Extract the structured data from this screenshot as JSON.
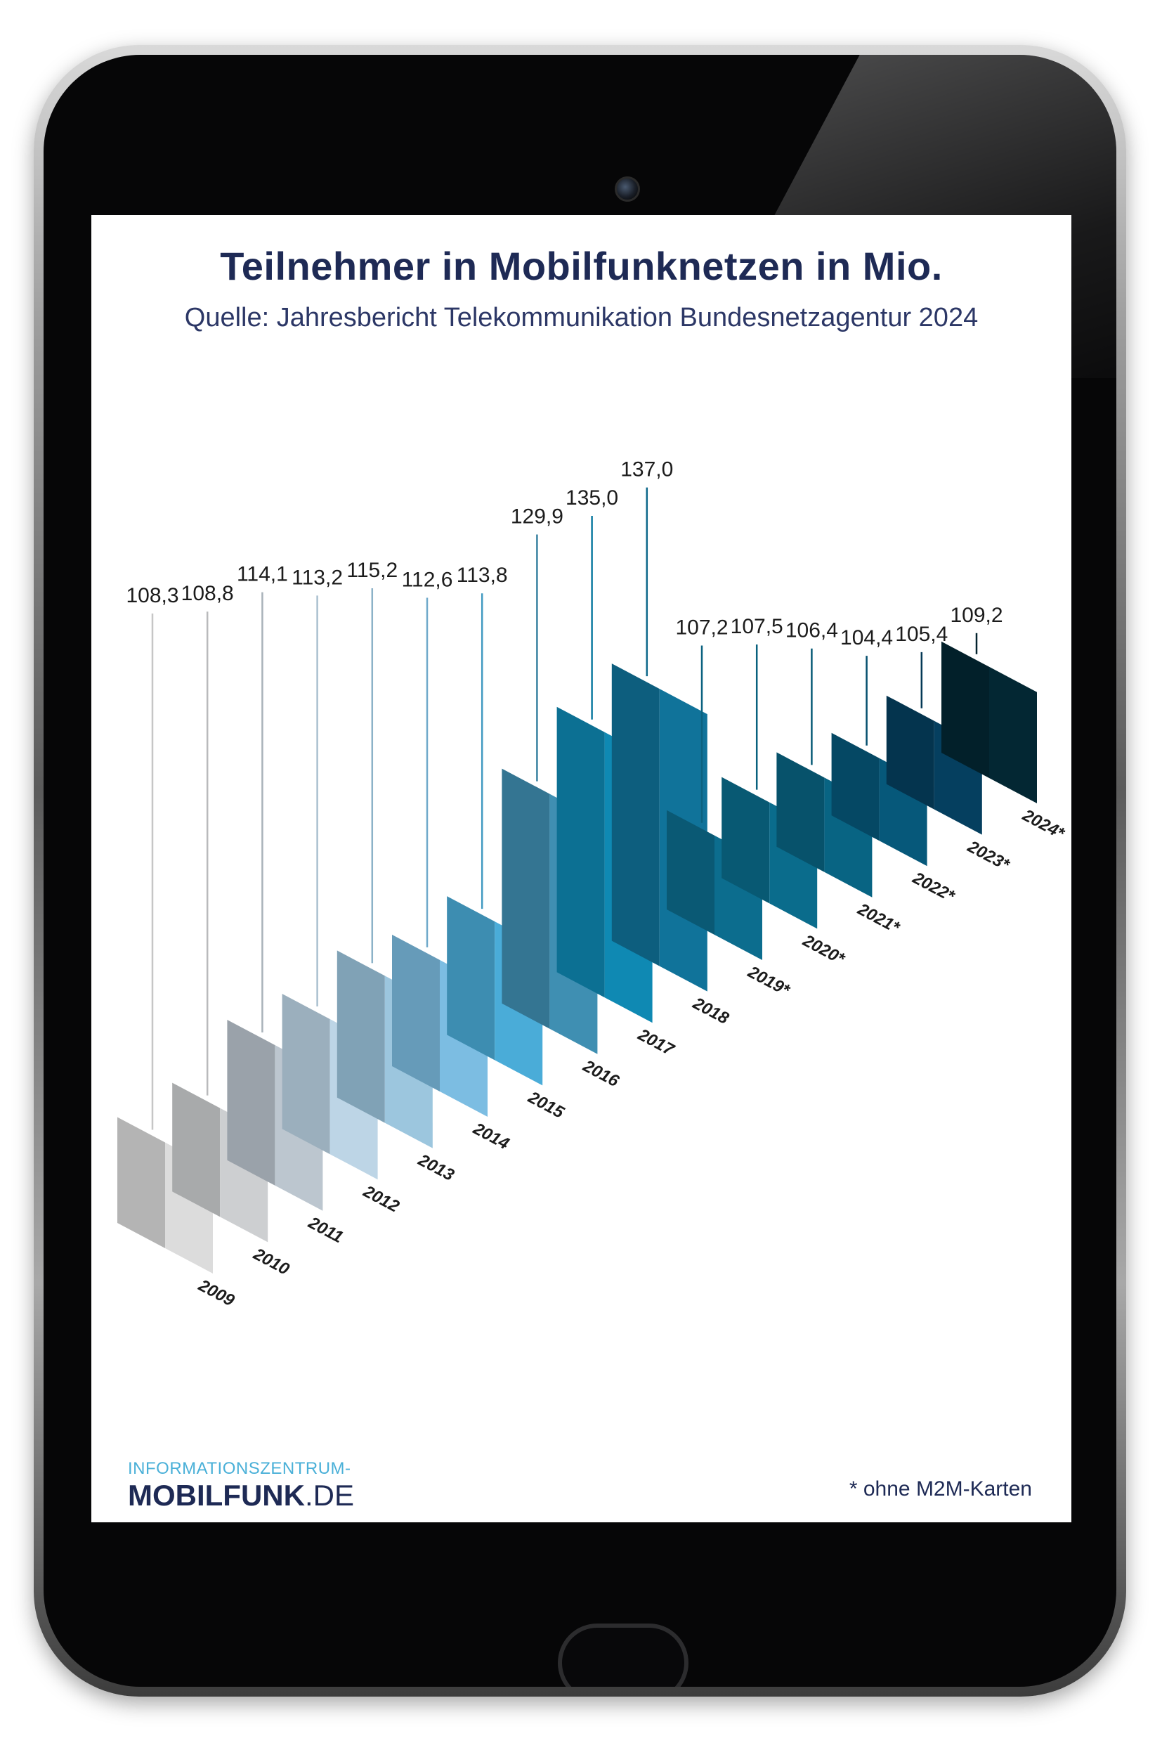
{
  "chart_data": {
    "type": "bar",
    "title": "Teilnehmer in Mobilfunknetzen in Mio.",
    "subtitle": "Quelle: Jahresbericht Telekommunikation Bundesnetzagentur 2024",
    "categories": [
      "2009",
      "2010",
      "2011",
      "2012",
      "2013",
      "2014",
      "2015",
      "2016",
      "2017",
      "2018",
      "2019*",
      "2020*",
      "2021*",
      "2022*",
      "2023*",
      "2024*"
    ],
    "values": [
      108.3,
      108.8,
      114.1,
      113.2,
      115.2,
      112.6,
      113.8,
      129.9,
      135.0,
      137.0,
      107.2,
      107.5,
      106.4,
      104.4,
      105.4,
      109.2
    ],
    "value_labels": [
      "108,3",
      "108,8",
      "114,1",
      "113,2",
      "115,2",
      "112,6",
      "113,8",
      "129,9",
      "135,0",
      "137,0",
      "107,2",
      "107,5",
      "106,4",
      "104,4",
      "105,4",
      "109,2"
    ],
    "colors": [
      "#dcdcdc",
      "#cdcfd1",
      "#bcc6cf",
      "#bdd5e6",
      "#9cc6de",
      "#7cbde2",
      "#4aacd8",
      "#3f8fb2",
      "#0f89b3",
      "#10739a",
      "#0c6d8e",
      "#0a6c8c",
      "#086483",
      "#06587a",
      "#053f5f",
      "#032733"
    ],
    "footnote": "* ohne M2M-Karten"
  },
  "logo": {
    "top": "INFORMATIONSZENTRUM-",
    "bold": "MOBILFUNK",
    "domain": ".DE"
  }
}
